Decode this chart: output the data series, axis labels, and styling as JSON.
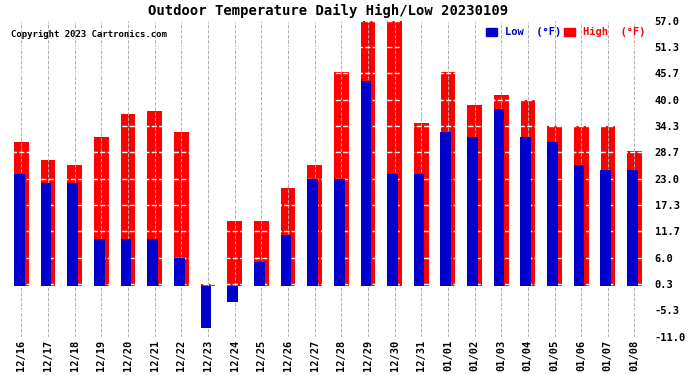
{
  "title": "Outdoor Temperature Daily High/Low 20230109",
  "copyright": "Copyright 2023 Cartronics.com",
  "legend_low_label": "Low  (°F)",
  "legend_high_label": "High  (°F)",
  "low_color": "#0000cc",
  "high_color": "#ff0000",
  "background_color": "#ffffff",
  "grid_color": "#b0b0b0",
  "ylim": [
    -11.0,
    57.0
  ],
  "yticks": [
    -11.0,
    -5.3,
    0.3,
    6.0,
    11.7,
    17.3,
    23.0,
    28.7,
    34.3,
    40.0,
    45.7,
    51.3,
    57.0
  ],
  "dates": [
    "12/16",
    "12/17",
    "12/18",
    "12/19",
    "12/20",
    "12/21",
    "12/22",
    "12/23",
    "12/24",
    "12/25",
    "12/26",
    "12/27",
    "12/28",
    "12/29",
    "12/30",
    "12/31",
    "01/01",
    "01/02",
    "01/03",
    "01/04",
    "01/05",
    "01/06",
    "01/07",
    "01/08"
  ],
  "high_vals": [
    31.0,
    27.0,
    26.0,
    32.0,
    37.0,
    37.5,
    33.0,
    0.3,
    14.0,
    14.0,
    21.0,
    26.0,
    46.0,
    57.0,
    57.0,
    35.0,
    46.0,
    39.0,
    41.0,
    40.0,
    34.3,
    34.3,
    34.3,
    29.0
  ],
  "low_vals": [
    24.0,
    22.0,
    22.0,
    10.0,
    10.0,
    10.0,
    6.0,
    -9.0,
    -3.5,
    5.0,
    11.0,
    23.0,
    23.0,
    44.0,
    24.0,
    24.0,
    33.0,
    32.0,
    38.0,
    32.0,
    31.0,
    26.0,
    25.0,
    25.0
  ]
}
